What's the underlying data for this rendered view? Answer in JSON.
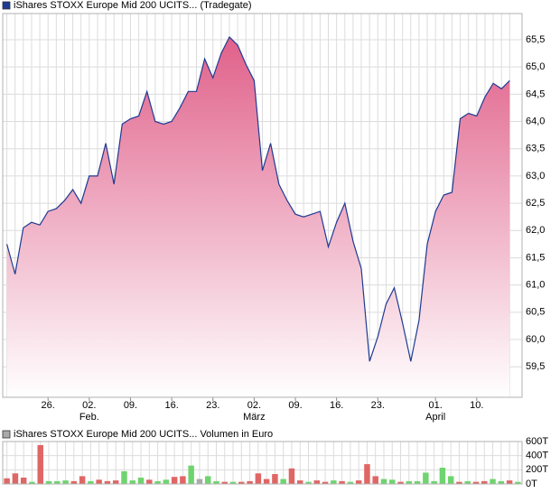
{
  "chart_data": [
    {
      "type": "area",
      "series": [
        {
          "name": "iShares STOXX Europe Mid 200 UCITS... (Tradegate)",
          "color": "#1f3a93",
          "fill": "#e0608a",
          "values": [
            61.75,
            61.2,
            62.05,
            62.15,
            62.1,
            62.35,
            62.4,
            62.55,
            62.75,
            62.5,
            63.0,
            63.0,
            63.6,
            62.85,
            63.95,
            64.05,
            64.1,
            64.55,
            64.0,
            63.95,
            64.0,
            64.25,
            64.55,
            64.55,
            65.15,
            64.8,
            65.25,
            65.55,
            65.4,
            65.05,
            64.75,
            63.1,
            63.6,
            62.85,
            62.55,
            62.3,
            62.25,
            62.3,
            62.35,
            61.7,
            62.15,
            62.5,
            61.8,
            61.3,
            59.6,
            60.05,
            60.65,
            60.95,
            60.3,
            59.6,
            60.35,
            61.75,
            62.35,
            62.65,
            62.7,
            64.05,
            64.15,
            64.1,
            64.45,
            64.7,
            64.6,
            64.75
          ]
        }
      ],
      "x": [
        0,
        1,
        2,
        3,
        4,
        5,
        6,
        7,
        8,
        9,
        10,
        11,
        12,
        13,
        14,
        15,
        16,
        17,
        18,
        19,
        20,
        21,
        22,
        23,
        24,
        25,
        26,
        27,
        28,
        29,
        30,
        31,
        32,
        33,
        34,
        35,
        36,
        37,
        38,
        39,
        40,
        41,
        42,
        43,
        44,
        45,
        46,
        47,
        48,
        49,
        50,
        51,
        52,
        53,
        54,
        55,
        56,
        57,
        58,
        59,
        60,
        61
      ],
      "xlim": [
        -0.5,
        62.5
      ],
      "xticks": [
        {
          "value": 5,
          "label": "26."
        },
        {
          "value": 10,
          "label": "02.",
          "month": "Feb."
        },
        {
          "value": 15,
          "label": "09."
        },
        {
          "value": 20,
          "label": "16."
        },
        {
          "value": 25,
          "label": "23."
        },
        {
          "value": 30,
          "label": "02.",
          "month": "März"
        },
        {
          "value": 35,
          "label": "09."
        },
        {
          "value": 40,
          "label": "16."
        },
        {
          "value": 45,
          "label": "23."
        },
        {
          "value": 52,
          "label": "01.",
          "month": "April"
        },
        {
          "value": 57,
          "label": "10."
        }
      ],
      "ylim": [
        58.94,
        65.98
      ],
      "yticks": [
        {
          "value": 59.5,
          "label": "59,5"
        },
        {
          "value": 60,
          "label": "60,0"
        },
        {
          "value": 60.5,
          "label": "60,5"
        },
        {
          "value": 61,
          "label": "61,0"
        },
        {
          "value": 61.5,
          "label": "61,5"
        },
        {
          "value": 62,
          "label": "62,0"
        },
        {
          "value": 62.5,
          "label": "62,5"
        },
        {
          "value": 63,
          "label": "63,0"
        },
        {
          "value": 63.5,
          "label": "63,5"
        },
        {
          "value": 64,
          "label": "64,0"
        },
        {
          "value": 64.5,
          "label": "64,5"
        },
        {
          "value": 65,
          "label": "65,0"
        },
        {
          "value": 65.5,
          "label": "65,5"
        }
      ],
      "grid": true
    },
    {
      "type": "bar",
      "series": [
        {
          "name": "iShares STOXX Europe Mid 200 UCITS... Volumen in Euro",
          "color": "#aaaaaa",
          "values": [
            80000,
            150000,
            90000,
            30000,
            550000,
            40000,
            40000,
            50000,
            40000,
            110000,
            40000,
            60000,
            40000,
            50000,
            180000,
            50000,
            90000,
            60000,
            40000,
            60000,
            100000,
            110000,
            260000,
            70000,
            110000,
            40000,
            30000,
            30000,
            30000,
            40000,
            150000,
            70000,
            140000,
            70000,
            220000,
            50000,
            30000,
            50000,
            30000,
            50000,
            40000,
            30000,
            50000,
            280000,
            110000,
            70000,
            60000,
            30000,
            40000,
            40000,
            160000,
            40000,
            230000,
            110000,
            30000,
            40000,
            30000,
            40000,
            70000,
            40000,
            50000,
            30000
          ],
          "colors": [
            "#e06666",
            "#e06666",
            "#e06666",
            "#6fd46f",
            "#e06666",
            "#6fd46f",
            "#6fd46f",
            "#6fd46f",
            "#e06666",
            "#e06666",
            "#6fd46f",
            "#e06666",
            "#e06666",
            "#e06666",
            "#6fd46f",
            "#6fd46f",
            "#6fd46f",
            "#e06666",
            "#6fd46f",
            "#6fd46f",
            "#e06666",
            "#e06666",
            "#6fd46f",
            "#aaaaaa",
            "#6fd46f",
            "#6fd46f",
            "#e06666",
            "#6fd46f",
            "#e06666",
            "#e06666",
            "#e06666",
            "#e06666",
            "#e06666",
            "#6fd46f",
            "#e06666",
            "#e06666",
            "#6fd46f",
            "#e06666",
            "#e06666",
            "#6fd46f",
            "#e06666",
            "#6fd46f",
            "#e06666",
            "#e06666",
            "#e06666",
            "#6fd46f",
            "#6fd46f",
            "#e06666",
            "#6fd46f",
            "#6fd46f",
            "#6fd46f",
            "#6fd46f",
            "#6fd46f",
            "#6fd46f",
            "#e06666",
            "#6fd46f",
            "#e06666",
            "#e06666",
            "#6fd46f",
            "#6fd46f",
            "#e06666",
            "#6fd46f"
          ]
        }
      ],
      "ylim": [
        0,
        600000
      ],
      "yticks": [
        {
          "value": 0,
          "label": "0T"
        },
        {
          "value": 200000,
          "label": "200T"
        },
        {
          "value": 400000,
          "label": "400T"
        },
        {
          "value": 600000,
          "label": "600T"
        }
      ],
      "grid": true
    }
  ]
}
